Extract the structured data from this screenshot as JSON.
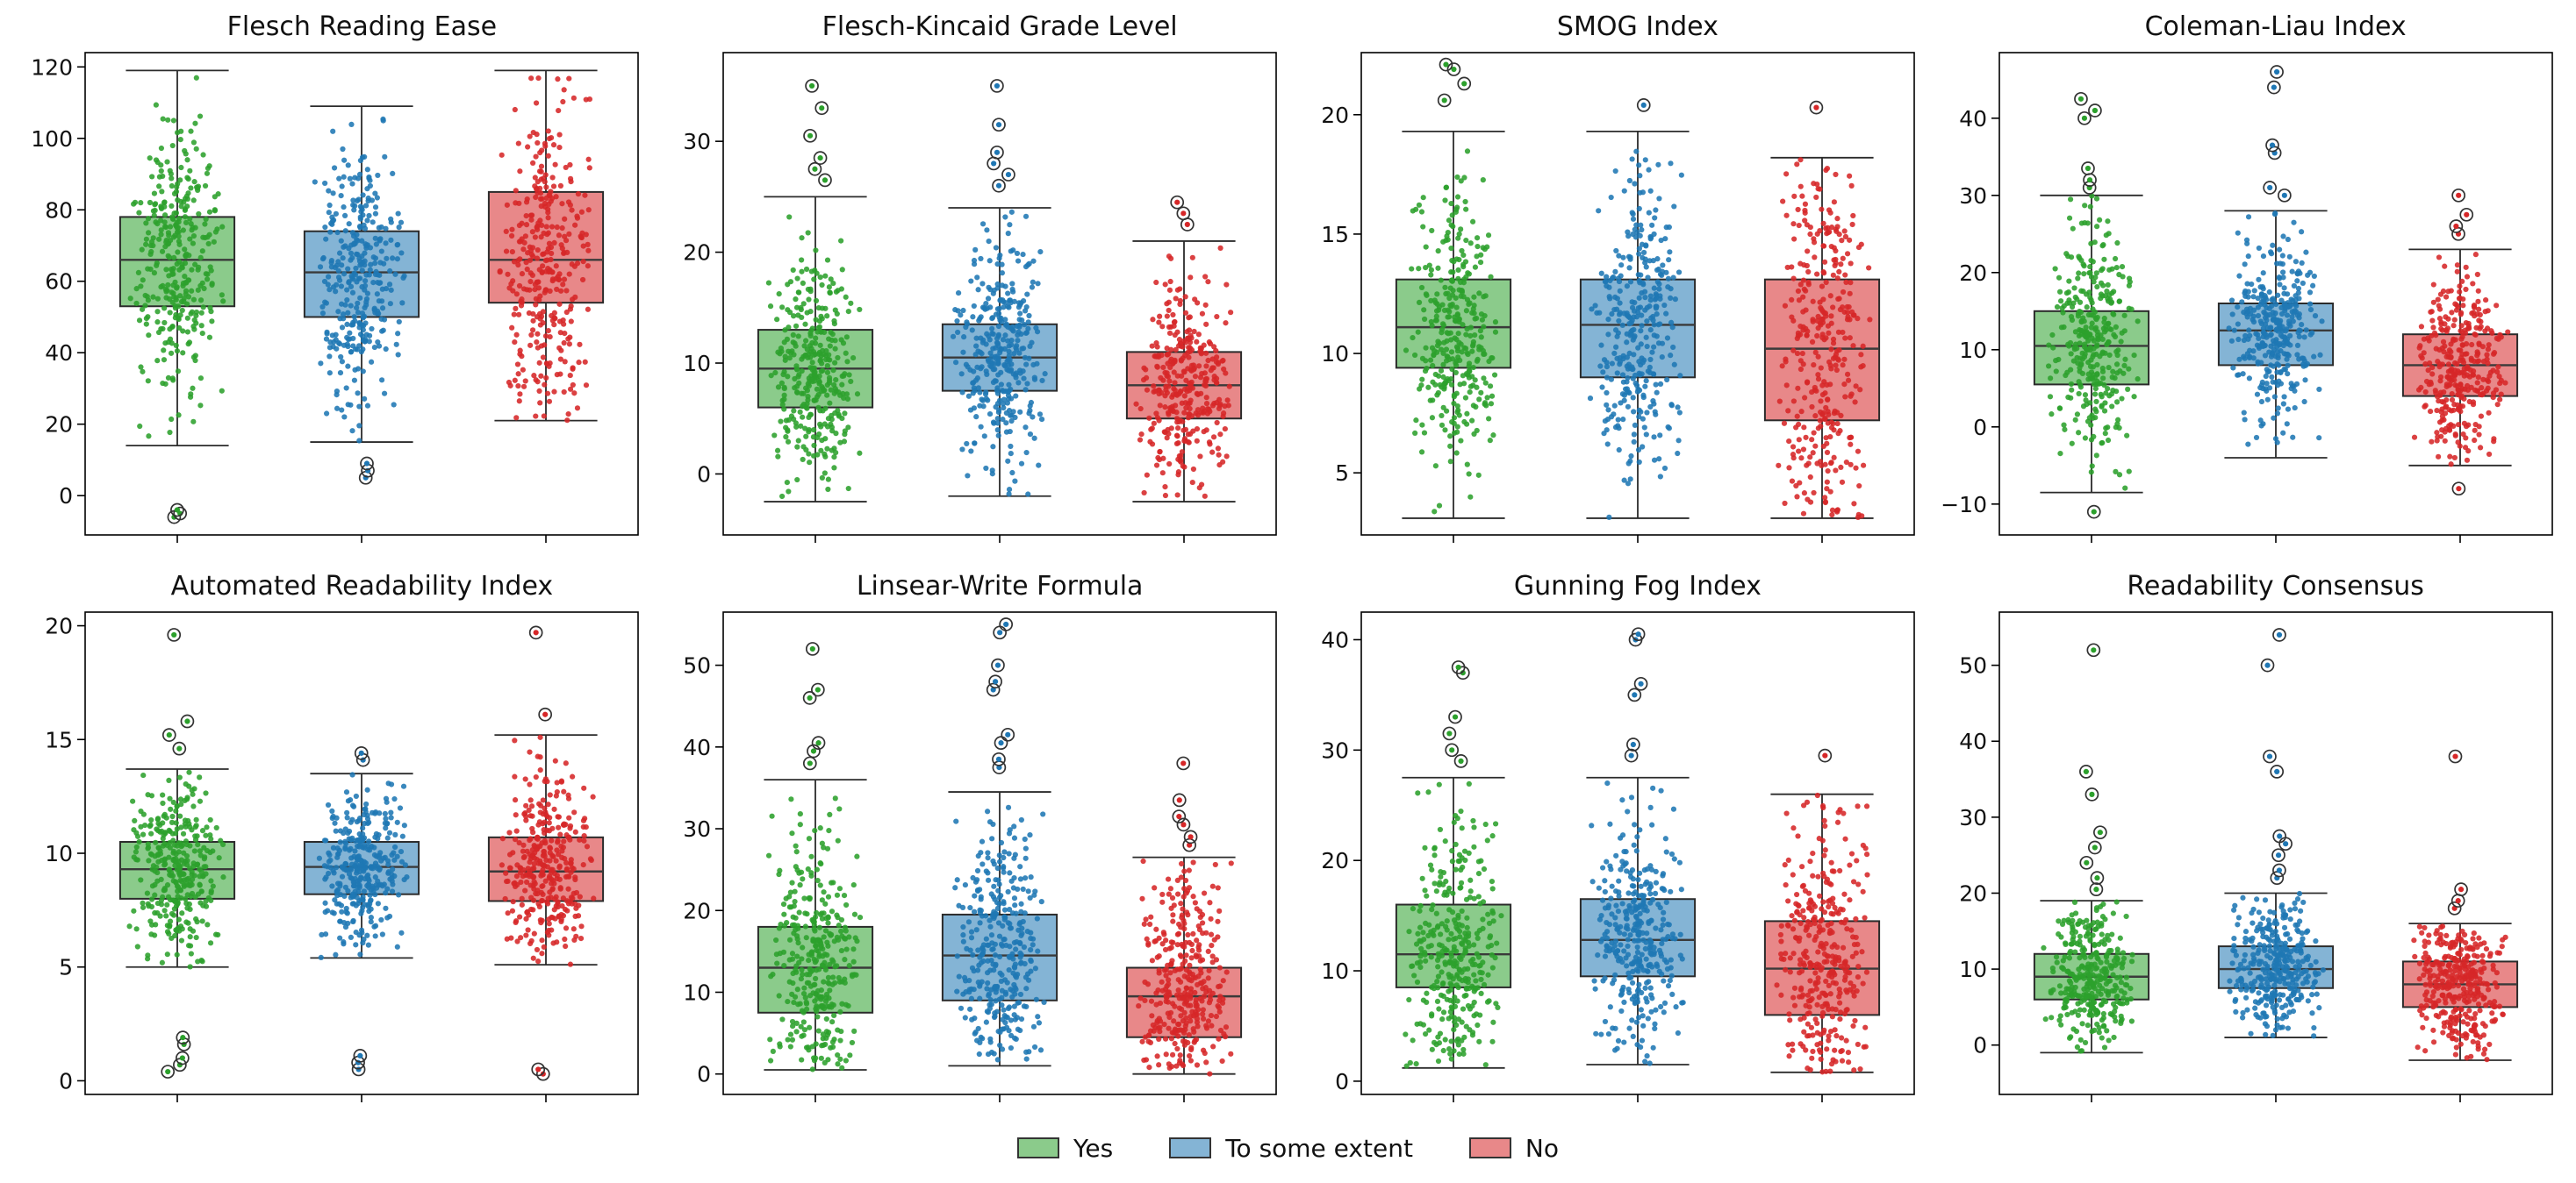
{
  "figure": {
    "background": "#ffffff"
  },
  "palette": {
    "point_colors": [
      "#2ca02c",
      "#1f77b4",
      "#d62728"
    ],
    "box_colors": [
      "#8bcb8b",
      "#84b4d5",
      "#e88889"
    ],
    "edge_color": "#2b2b2b",
    "median_color": "#3a3a3a",
    "outlier_ring_color": "#333333"
  },
  "legend": {
    "items": [
      {
        "label": "Yes",
        "color": "#8bcb8b",
        "edge": "#333333"
      },
      {
        "label": "To some extent",
        "color": "#84b4d5",
        "edge": "#333333"
      },
      {
        "label": "No",
        "color": "#e88889",
        "edge": "#333333"
      }
    ]
  },
  "chart_data": [
    {
      "type": "boxplot",
      "title": "Flesch Reading Ease",
      "groups": [
        "Yes",
        "To some extent",
        "No"
      ],
      "ylim": [
        -11,
        124
      ],
      "yticks": [
        0,
        20,
        40,
        60,
        80,
        100,
        120
      ],
      "series": [
        {
          "name": "Yes",
          "whisker_low": 14,
          "q1": 53,
          "median": 66,
          "q3": 78,
          "whisker_high": 119,
          "outliers": [
            -6,
            -5,
            -4
          ]
        },
        {
          "name": "To some extent",
          "whisker_low": 15,
          "q1": 50,
          "median": 62.5,
          "q3": 74,
          "whisker_high": 109,
          "outliers": [
            5,
            7,
            9
          ]
        },
        {
          "name": "No",
          "whisker_low": 21,
          "q1": 54,
          "median": 66,
          "q3": 85,
          "whisker_high": 119,
          "outliers": []
        }
      ]
    },
    {
      "type": "boxplot",
      "title": "Flesch-Kincaid Grade Level",
      "groups": [
        "Yes",
        "To some extent",
        "No"
      ],
      "ylim": [
        -5.5,
        38
      ],
      "yticks": [
        0,
        10,
        20,
        30
      ],
      "series": [
        {
          "name": "Yes",
          "whisker_low": -2.5,
          "q1": 6,
          "median": 9.5,
          "q3": 13,
          "whisker_high": 25,
          "outliers": [
            26.5,
            27.5,
            28.5,
            30.5,
            33,
            35
          ]
        },
        {
          "name": "To some extent",
          "whisker_low": -2,
          "q1": 7.5,
          "median": 10.5,
          "q3": 13.5,
          "whisker_high": 24,
          "outliers": [
            26,
            27,
            28,
            29,
            31.5,
            35
          ]
        },
        {
          "name": "No",
          "whisker_low": -2.5,
          "q1": 5,
          "median": 8,
          "q3": 11,
          "whisker_high": 21,
          "outliers": [
            22.5,
            23.5,
            24.5
          ]
        }
      ]
    },
    {
      "type": "boxplot",
      "title": "SMOG Index",
      "groups": [
        "Yes",
        "To some extent",
        "No"
      ],
      "ylim": [
        2.4,
        22.6
      ],
      "yticks": [
        5,
        10,
        15,
        20
      ],
      "series": [
        {
          "name": "Yes",
          "whisker_low": 3.1,
          "q1": 9.4,
          "median": 11.1,
          "q3": 13.1,
          "whisker_high": 19.3,
          "outliers": [
            20.6,
            21.3,
            21.9,
            22.1
          ]
        },
        {
          "name": "To some extent",
          "whisker_low": 3.1,
          "q1": 9,
          "median": 11.2,
          "q3": 13.1,
          "whisker_high": 19.3,
          "outliers": [
            20.4
          ]
        },
        {
          "name": "No",
          "whisker_low": 3.1,
          "q1": 7.2,
          "median": 10.2,
          "q3": 13.1,
          "whisker_high": 18.2,
          "outliers": [
            20.3
          ]
        }
      ]
    },
    {
      "type": "boxplot",
      "title": "Coleman-Liau Index",
      "groups": [
        "Yes",
        "To some extent",
        "No"
      ],
      "ylim": [
        -14,
        48.5
      ],
      "yticks": [
        -10,
        0,
        10,
        20,
        30,
        40
      ],
      "series": [
        {
          "name": "Yes",
          "whisker_low": -8.5,
          "q1": 5.5,
          "median": 10.5,
          "q3": 15,
          "whisker_high": 30,
          "outliers": [
            -11,
            31,
            32,
            33.5,
            40,
            41,
            42.5
          ]
        },
        {
          "name": "To some extent",
          "whisker_low": -4,
          "q1": 8,
          "median": 12.5,
          "q3": 16,
          "whisker_high": 28,
          "outliers": [
            30,
            31,
            35.5,
            36.5,
            44,
            46
          ]
        },
        {
          "name": "No",
          "whisker_low": -5,
          "q1": 4,
          "median": 8,
          "q3": 12,
          "whisker_high": 23,
          "outliers": [
            -8,
            25,
            26,
            27.5,
            30
          ]
        }
      ]
    },
    {
      "type": "boxplot",
      "title": "Automated Readability Index",
      "groups": [
        "Yes",
        "To some extent",
        "No"
      ],
      "ylim": [
        -0.6,
        20.6
      ],
      "yticks": [
        0,
        5,
        10,
        15,
        20
      ],
      "series": [
        {
          "name": "Yes",
          "whisker_low": 5,
          "q1": 8,
          "median": 9.3,
          "q3": 10.5,
          "whisker_high": 13.7,
          "outliers": [
            0.4,
            0.7,
            1,
            1.6,
            1.9,
            14.6,
            15.2,
            15.8,
            19.6
          ]
        },
        {
          "name": "To some extent",
          "whisker_low": 5.4,
          "q1": 8.2,
          "median": 9.4,
          "q3": 10.5,
          "whisker_high": 13.5,
          "outliers": [
            0.5,
            0.8,
            1.1,
            14.1,
            14.4
          ]
        },
        {
          "name": "No",
          "whisker_low": 5.1,
          "q1": 7.9,
          "median": 9.2,
          "q3": 10.7,
          "whisker_high": 15.2,
          "outliers": [
            0.3,
            0.5,
            16.1,
            19.7
          ]
        }
      ]
    },
    {
      "type": "boxplot",
      "title": "Linsear-Write Formula",
      "groups": [
        "Yes",
        "To some extent",
        "No"
      ],
      "ylim": [
        -2.5,
        56.5
      ],
      "yticks": [
        0,
        10,
        20,
        30,
        40,
        50
      ],
      "series": [
        {
          "name": "Yes",
          "whisker_low": 0.5,
          "q1": 7.5,
          "median": 13,
          "q3": 18,
          "whisker_high": 36,
          "outliers": [
            38,
            39.5,
            40.5,
            46,
            47,
            52
          ]
        },
        {
          "name": "To some extent",
          "whisker_low": 1,
          "q1": 9,
          "median": 14.5,
          "q3": 19.5,
          "whisker_high": 34.5,
          "outliers": [
            37.5,
            38.5,
            40.5,
            41.5,
            47,
            48,
            50,
            54,
            55
          ]
        },
        {
          "name": "No",
          "whisker_low": 0,
          "q1": 4.5,
          "median": 9.5,
          "q3": 13,
          "whisker_high": 26.5,
          "outliers": [
            28,
            29,
            30.5,
            31.5,
            33.5,
            38
          ]
        }
      ]
    },
    {
      "type": "boxplot",
      "title": "Gunning Fog Index",
      "groups": [
        "Yes",
        "To some extent",
        "No"
      ],
      "ylim": [
        -1.2,
        42.5
      ],
      "yticks": [
        0,
        10,
        20,
        30,
        40
      ],
      "series": [
        {
          "name": "Yes",
          "whisker_low": 1.2,
          "q1": 8.5,
          "median": 11.5,
          "q3": 16,
          "whisker_high": 27.5,
          "outliers": [
            29,
            30,
            31.5,
            33,
            37,
            37.5
          ]
        },
        {
          "name": "To some extent",
          "whisker_low": 1.5,
          "q1": 9.5,
          "median": 12.8,
          "q3": 16.5,
          "whisker_high": 27.5,
          "outliers": [
            29.5,
            30.5,
            35,
            36,
            40,
            40.5
          ]
        },
        {
          "name": "No",
          "whisker_low": 0.8,
          "q1": 6,
          "median": 10.2,
          "q3": 14.5,
          "whisker_high": 26,
          "outliers": [
            29.5
          ]
        }
      ]
    },
    {
      "type": "boxplot",
      "title": "Readability Consensus",
      "groups": [
        "Yes",
        "To some extent",
        "No"
      ],
      "ylim": [
        -6.5,
        57
      ],
      "yticks": [
        0,
        10,
        20,
        30,
        40,
        50
      ],
      "series": [
        {
          "name": "Yes",
          "whisker_low": -1,
          "q1": 6,
          "median": 9,
          "q3": 12,
          "whisker_high": 19,
          "outliers": [
            20.5,
            22,
            24,
            26,
            28,
            33,
            36,
            52
          ]
        },
        {
          "name": "To some extent",
          "whisker_low": 1,
          "q1": 7.5,
          "median": 10,
          "q3": 13,
          "whisker_high": 20,
          "outliers": [
            22,
            23,
            25,
            26.5,
            27.5,
            36,
            38,
            50,
            54
          ]
        },
        {
          "name": "No",
          "whisker_low": -2,
          "q1": 5,
          "median": 8,
          "q3": 11,
          "whisker_high": 16,
          "outliers": [
            18,
            19,
            20.5,
            38
          ]
        }
      ]
    }
  ]
}
